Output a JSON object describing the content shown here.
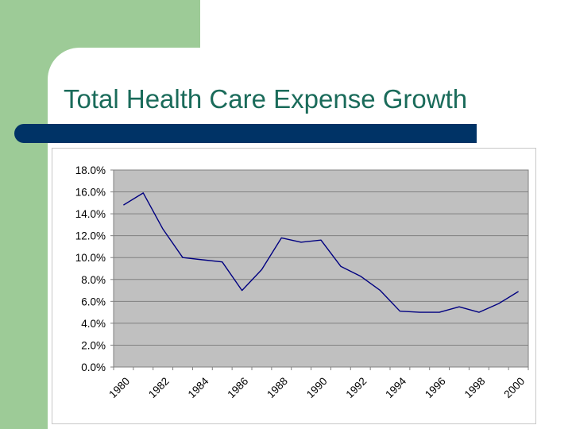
{
  "slide": {
    "title": "Total Health Care Expense Growth"
  },
  "colors": {
    "side_block": "#9dcb97",
    "title_text": "#1a6b5a",
    "rule_bar": "#003366",
    "plot_background": "#c0c0c0",
    "series_line": "#000080"
  },
  "chart_data": {
    "type": "line",
    "title": "",
    "xlabel": "",
    "ylabel": "",
    "x": [
      1980,
      1981,
      1982,
      1983,
      1984,
      1985,
      1986,
      1987,
      1988,
      1989,
      1990,
      1991,
      1992,
      1993,
      1994,
      1995,
      1996,
      1997,
      1998,
      1999,
      2000
    ],
    "x_tick_labels": [
      "1980",
      "1982",
      "1984",
      "1986",
      "1988",
      "1990",
      "1992",
      "1994",
      "1996",
      "1998",
      "2000"
    ],
    "y_tick_labels": [
      "18.0%",
      "16.0%",
      "14.0%",
      "12.0%",
      "10.0%",
      "8.0%",
      "6.0%",
      "4.0%",
      "2.0%",
      "0.0%"
    ],
    "ylim": [
      0,
      18
    ],
    "y_step": 2,
    "grid": true,
    "legend": "none",
    "series": [
      {
        "values": [
          14.8,
          15.9,
          12.6,
          10.0,
          9.8,
          9.6,
          7.0,
          8.9,
          11.8,
          11.4,
          11.6,
          9.2,
          8.3,
          7.0,
          5.1,
          5.0,
          5.0,
          5.5,
          5.0,
          5.8,
          6.9
        ]
      }
    ]
  }
}
